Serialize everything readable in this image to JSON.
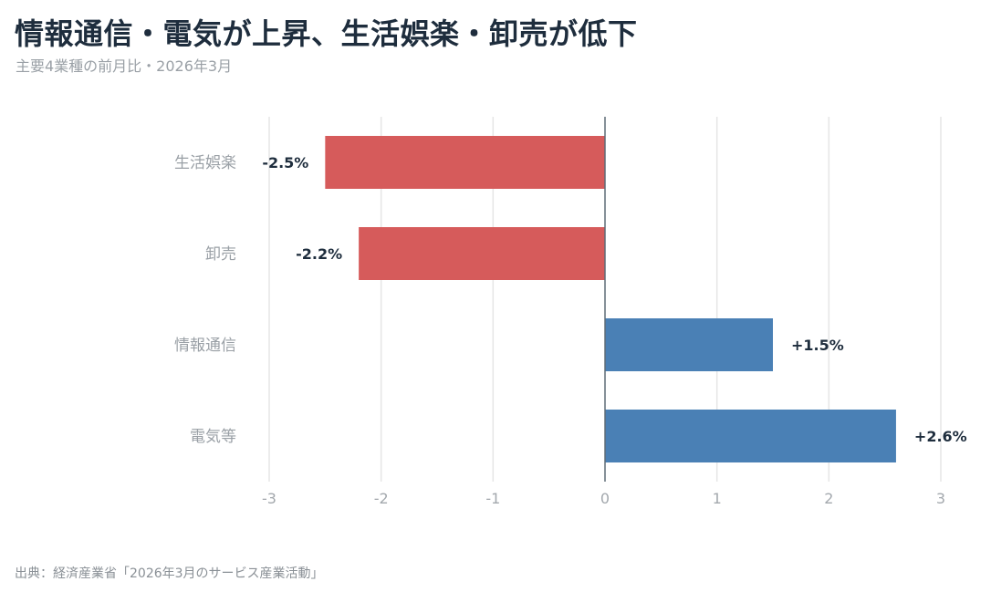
{
  "header": {
    "title": "情報通信・電気が上昇、生活娯楽・卸売が低下",
    "subtitle": "主要4業種の前月比・2026年3月"
  },
  "footer": {
    "source": "出典：経済産業省「2026年3月のサービス産業活動」"
  },
  "colors": {
    "negative": "#d65b5b",
    "positive": "#4a80b5",
    "grid": "#e6e6e6",
    "axis": "#5f6b76"
  },
  "chart_data": {
    "type": "bar",
    "orientation": "horizontal",
    "title": "情報通信・電気が上昇、生活娯楽・卸売が低下",
    "subtitle": "主要4業種の前月比・2026年3月",
    "categories": [
      "生活娯楽",
      "卸売",
      "情報通信",
      "電気等"
    ],
    "values": [
      -2.5,
      -2.2,
      1.5,
      2.6
    ],
    "data_labels": [
      "-2.5%",
      "-2.2%",
      "+1.5%",
      "+2.6%"
    ],
    "xlim": [
      -3,
      3
    ],
    "xticks": [
      -3,
      -2,
      -1,
      0,
      1,
      2,
      3
    ],
    "xtick_labels": [
      "-3",
      "-2",
      "-1",
      "0",
      "1",
      "2",
      "3"
    ],
    "xlabel": "",
    "ylabel": "",
    "grid": "vertical",
    "legend": "none"
  }
}
